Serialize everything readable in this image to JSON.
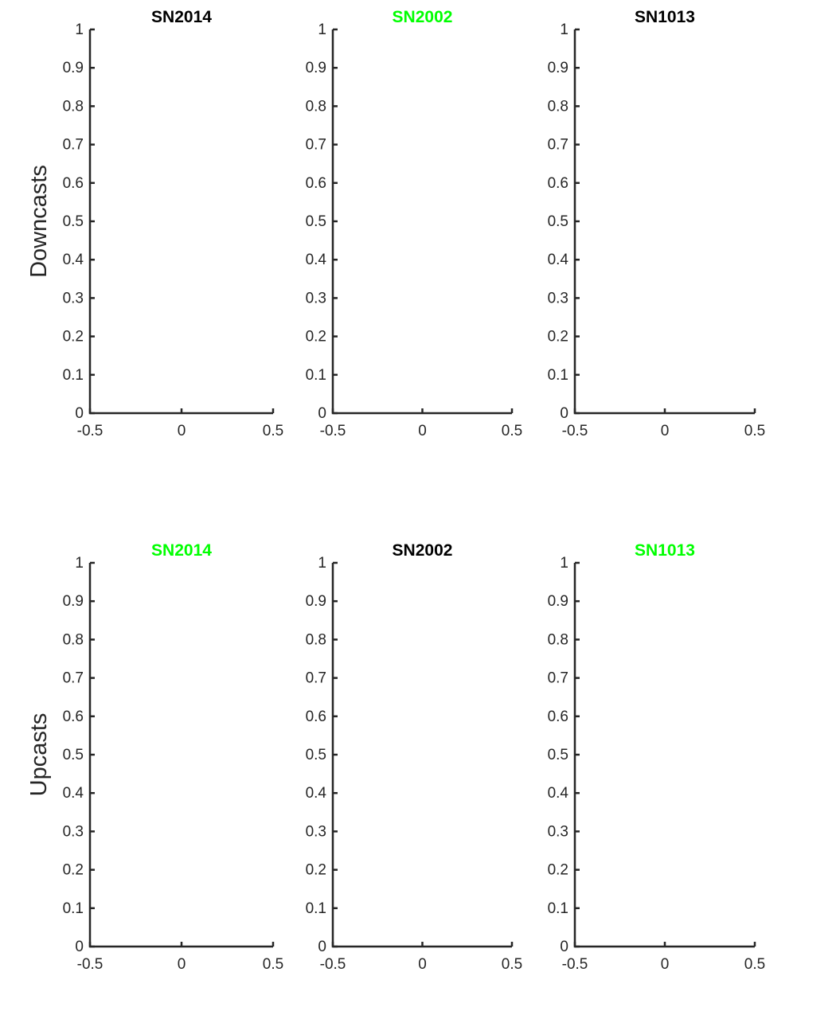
{
  "colors": {
    "axis": "#262626",
    "title_black": "#000000",
    "title_green": "#00ff00"
  },
  "chart_data": [
    {
      "type": "line",
      "row_label": "Downcasts",
      "title": "SN2014",
      "title_color": "#000000",
      "xlim": [
        -0.5,
        0.5
      ],
      "ylim": [
        0,
        1
      ],
      "xticks": [
        "-0.5",
        "0",
        "0.5"
      ],
      "yticks": [
        "0",
        "0.1",
        "0.2",
        "0.3",
        "0.4",
        "0.5",
        "0.6",
        "0.7",
        "0.8",
        "0.9",
        "1"
      ],
      "grid": false,
      "series": []
    },
    {
      "type": "line",
      "title": "SN2002",
      "title_color": "#00ff00",
      "xlim": [
        -0.5,
        0.5
      ],
      "ylim": [
        0,
        1
      ],
      "xticks": [
        "-0.5",
        "0",
        "0.5"
      ],
      "yticks": [
        "0",
        "0.1",
        "0.2",
        "0.3",
        "0.4",
        "0.5",
        "0.6",
        "0.7",
        "0.8",
        "0.9",
        "1"
      ],
      "grid": false,
      "series": []
    },
    {
      "type": "line",
      "title": "SN1013",
      "title_color": "#000000",
      "xlim": [
        -0.5,
        0.5
      ],
      "ylim": [
        0,
        1
      ],
      "xticks": [
        "-0.5",
        "0",
        "0.5"
      ],
      "yticks": [
        "0",
        "0.1",
        "0.2",
        "0.3",
        "0.4",
        "0.5",
        "0.6",
        "0.7",
        "0.8",
        "0.9",
        "1"
      ],
      "grid": false,
      "series": []
    },
    {
      "type": "line",
      "row_label": "Upcasts",
      "title": "SN2014",
      "title_color": "#00ff00",
      "xlim": [
        -0.5,
        0.5
      ],
      "ylim": [
        0,
        1
      ],
      "xticks": [
        "-0.5",
        "0",
        "0.5"
      ],
      "yticks": [
        "0",
        "0.1",
        "0.2",
        "0.3",
        "0.4",
        "0.5",
        "0.6",
        "0.7",
        "0.8",
        "0.9",
        "1"
      ],
      "grid": false,
      "series": []
    },
    {
      "type": "line",
      "title": "SN2002",
      "title_color": "#000000",
      "xlim": [
        -0.5,
        0.5
      ],
      "ylim": [
        0,
        1
      ],
      "xticks": [
        "-0.5",
        "0",
        "0.5"
      ],
      "yticks": [
        "0",
        "0.1",
        "0.2",
        "0.3",
        "0.4",
        "0.5",
        "0.6",
        "0.7",
        "0.8",
        "0.9",
        "1"
      ],
      "grid": false,
      "series": []
    },
    {
      "type": "line",
      "title": "SN1013",
      "title_color": "#00ff00",
      "xlim": [
        -0.5,
        0.5
      ],
      "ylim": [
        0,
        1
      ],
      "xticks": [
        "-0.5",
        "0",
        "0.5"
      ],
      "yticks": [
        "0",
        "0.1",
        "0.2",
        "0.3",
        "0.4",
        "0.5",
        "0.6",
        "0.7",
        "0.8",
        "0.9",
        "1"
      ],
      "grid": false,
      "series": []
    }
  ]
}
